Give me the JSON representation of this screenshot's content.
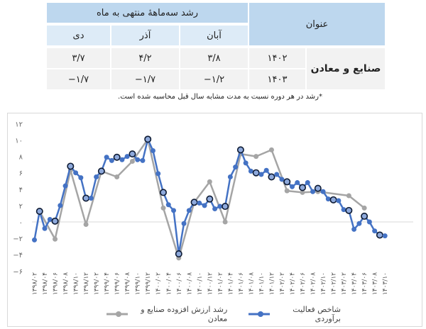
{
  "table": {
    "header_title": "عنوان",
    "header_group": "رشد سه‌ماههٔ منتهی به ماه",
    "months": [
      "آبان",
      "آذر",
      "دی"
    ],
    "row_label": "صنایع و معادن",
    "rows": [
      {
        "year": "۱۴۰۲",
        "values": [
          "۳/۸",
          "۴/۲",
          "۳/۷"
        ]
      },
      {
        "year": "۱۴۰۳",
        "values": [
          "−۱/۲",
          "−۱/۷",
          "−۱/۷"
        ]
      }
    ],
    "colors": {
      "header": "#BDD7EE",
      "subheader": "#DDEBF7",
      "row": "#F2F2F2"
    }
  },
  "footnote": "*رشد در هر دوره نسبت به مدت مشابه سال قبل محاسبه شده است.",
  "chart_data": {
    "type": "line",
    "title": "",
    "xlabel": "",
    "ylabel": "",
    "ylim": [
      -6,
      12
    ],
    "yticks": [
      12,
      10,
      8,
      6,
      4,
      2,
      0,
      -2,
      -4,
      -6
    ],
    "ytick_labels": [
      "۱۲",
      "۱۰",
      "۸",
      "۶",
      "۴",
      "۲",
      "۰",
      "−۲",
      "−۴",
      "−۶"
    ],
    "grid": false,
    "zero_line": true,
    "legend_position": "bottom",
    "x_tick_labels": [
      "۱۳۹۸/۰۲",
      "۱۳۹۸/۰۴",
      "۱۳۹۸/۰۶",
      "۱۳۹۸/۰۸",
      "۱۳۹۸/۱۰",
      "۱۳۹۸/۱۲",
      "۱۳۹۹/۰۲",
      "۱۳۹۹/۰۴",
      "۱۳۹۹/۰۶",
      "۱۳۹۹/۰۸",
      "۱۳۹۹/۱۰",
      "۱۳۹۹/۱۲",
      "۱۴۰۰/۰۲",
      "۱۴۰۰/۰۴",
      "۱۴۰۰/۰۶",
      "۱۴۰۰/۰۸",
      "۱۴۰۰/۱۰",
      "۱۴۰۰/۱۲",
      "۱۴۰۱/۰۲",
      "۱۴۰۱/۰۴",
      "۱۴۰۱/۰۶",
      "۱۴۰۱/۰۸",
      "۱۴۰۱/۱۰",
      "۱۴۰۱/۱۲",
      "۱۴۰۲/۰۲",
      "۱۴۰۲/۰۴",
      "۱۴۰۲/۰۶",
      "۱۴۰۲/۰۸",
      "۱۴۰۲/۱۰",
      "۱۴۰۲/۱۲",
      "۱۴۰۳/۰۲",
      "۱۴۰۳/۰۴",
      "۱۴۰۳/۰۶",
      "۱۴۰۳/۰۸",
      "۱۴۰۳/۱۰"
    ],
    "series": [
      {
        "name": "شاخص فعالیت برآوردی",
        "color": "#4472C4",
        "frequency": "monthly",
        "highlight_every": 3,
        "highlight_offset": 1,
        "values": [
          -2.2,
          1.3,
          -0.8,
          0.3,
          0.1,
          2.0,
          4.4,
          6.8,
          6.0,
          5.4,
          2.9,
          2.9,
          5.5,
          6.2,
          7.9,
          7.5,
          7.9,
          7.6,
          8.0,
          8.3,
          7.6,
          7.5,
          10.1,
          8.7,
          5.9,
          3.6,
          2.1,
          1.4,
          -3.9,
          -0.2,
          1.4,
          2.4,
          2.3,
          2.0,
          2.8,
          1.6,
          1.9,
          1.9,
          5.5,
          6.7,
          8.8,
          7.2,
          6.2,
          6.0,
          5.8,
          6.3,
          5.5,
          5.8,
          5.2,
          4.9,
          4.3,
          4.8,
          4.2,
          4.8,
          3.7,
          4.1,
          3.7,
          2.8,
          2.7,
          2.6,
          1.5,
          1.4,
          -0.9,
          -0.2,
          0.7,
          0.0,
          -1.1,
          -1.6,
          -1.7
        ]
      },
      {
        "name": "رشد ارزش افزوده صنایع و معادن",
        "color": "#A5A5A5",
        "frequency": "quarterly",
        "x_index": [
          1,
          4,
          7,
          10,
          13,
          16,
          19,
          22,
          25,
          28,
          31,
          34,
          37,
          40,
          43,
          46,
          49,
          52,
          55,
          61,
          64
        ],
        "values": [
          1.3,
          -2.1,
          6.3,
          -0.3,
          6.2,
          5.5,
          7.4,
          10.1,
          1.7,
          -4.4,
          2.4,
          4.9,
          0.0,
          8.3,
          8.0,
          8.8,
          3.8,
          3.6,
          3.7,
          3.2,
          1.7
        ]
      }
    ]
  },
  "legend": {
    "items": [
      {
        "label": "شاخص فعالیت برآوردی",
        "color": "#4472C4"
      },
      {
        "label": "رشد ارزش افزوده صنایع و معادن",
        "color": "#A5A5A5"
      }
    ]
  }
}
